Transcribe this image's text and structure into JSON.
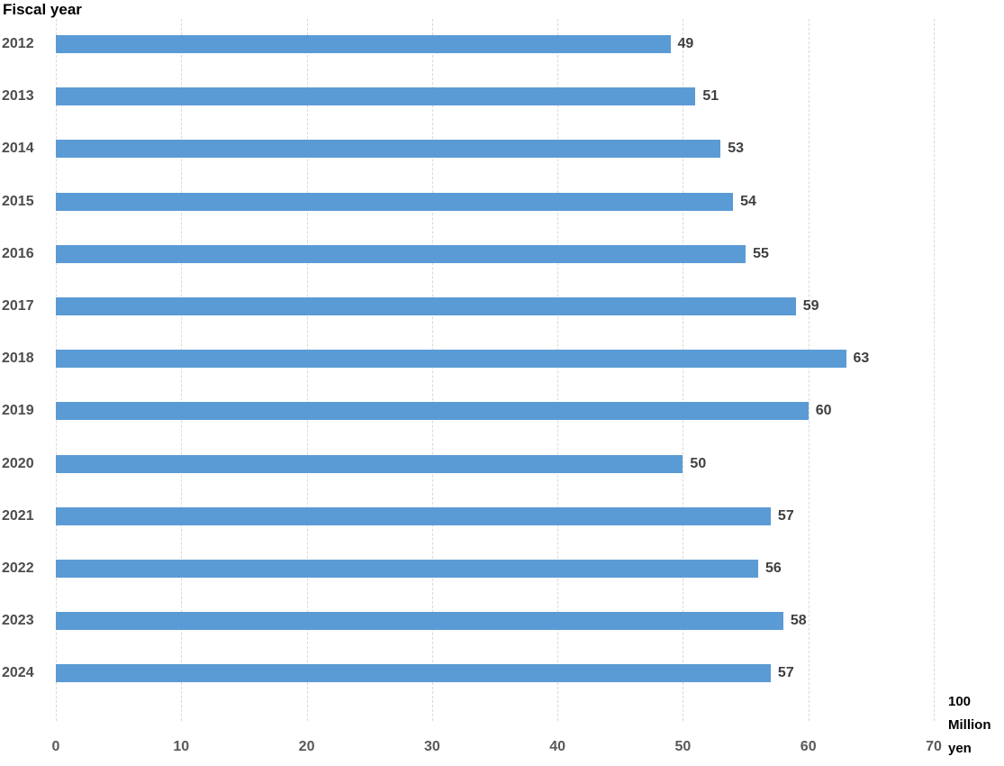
{
  "title": "Fiscal year",
  "unit_label": "100 Million yen",
  "unit_label_lines": [
    "100",
    "Million",
    "yen"
  ],
  "colors": {
    "bar": "#5b9bd5",
    "gridline": "#d9d9d9",
    "category_text": "#4d4d4d",
    "tick_text": "#595959",
    "value_text": "#3f3f3f",
    "title_text": "#000000"
  },
  "chart_data": {
    "type": "bar",
    "orientation": "horizontal",
    "title": "Fiscal year",
    "xlabel": "100 Million yen",
    "ylabel": "Fiscal year",
    "categories": [
      "2012",
      "2013",
      "2014",
      "2015",
      "2016",
      "2017",
      "2018",
      "2019",
      "2020",
      "2021",
      "2022",
      "2023",
      "2024"
    ],
    "values": [
      49,
      51,
      53,
      54,
      55,
      59,
      63,
      60,
      50,
      57,
      56,
      58,
      57
    ],
    "xlim": [
      0,
      70
    ],
    "xticks": [
      0,
      10,
      20,
      30,
      40,
      50,
      60,
      70
    ],
    "grid": true,
    "data_labels": true,
    "legend": false
  }
}
